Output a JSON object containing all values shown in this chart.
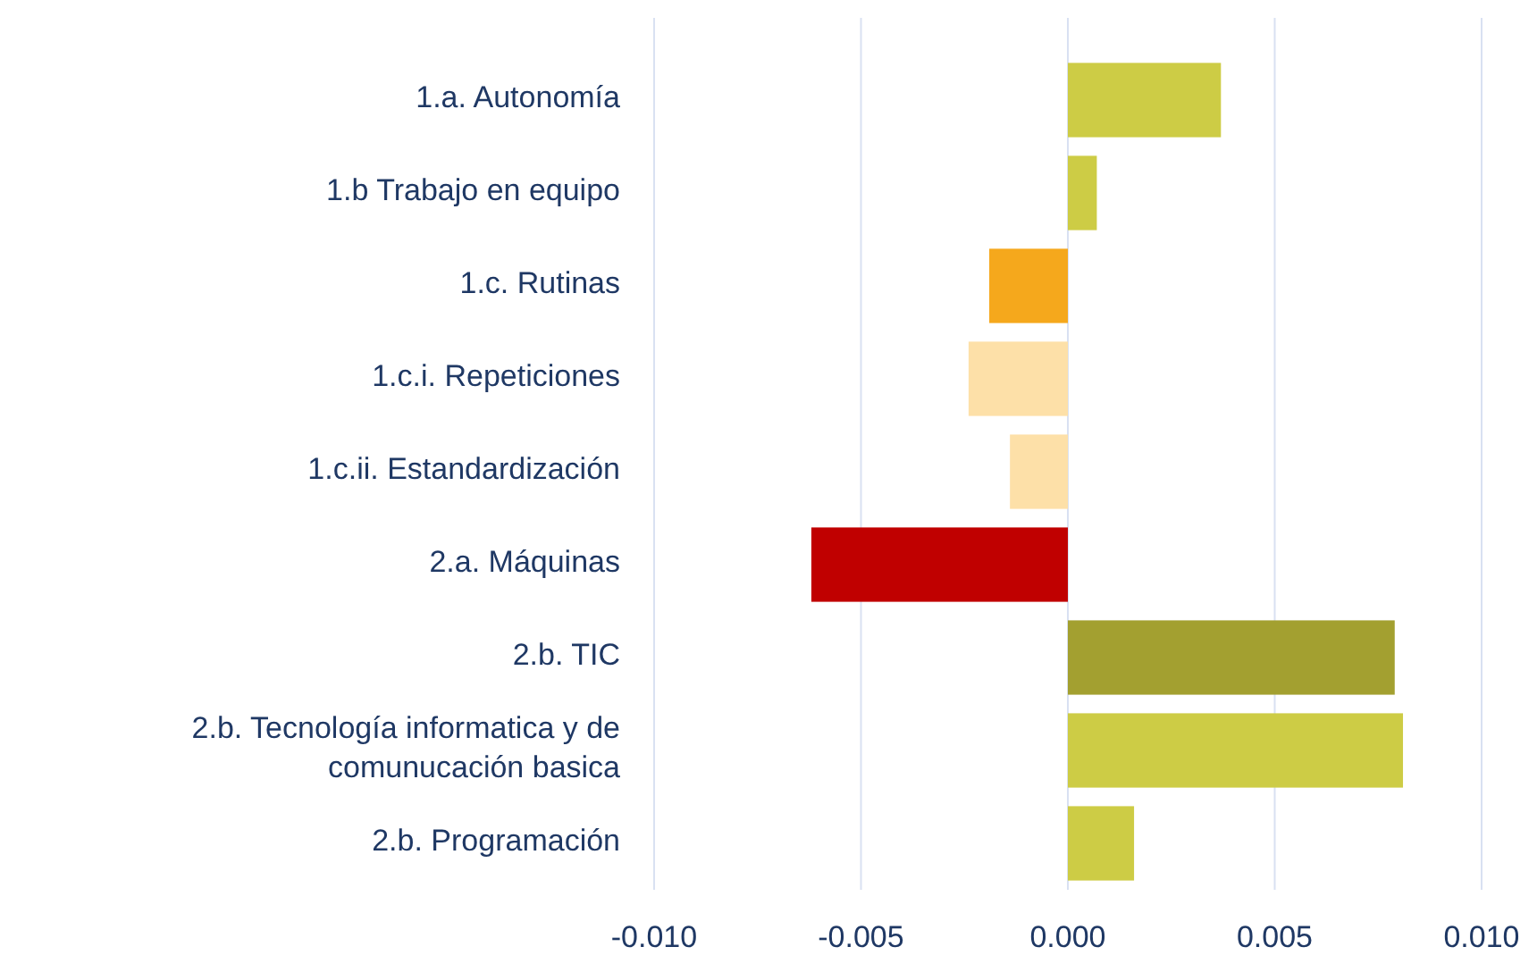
{
  "chart_data": {
    "type": "bar",
    "orientation": "horizontal",
    "categories": [
      "1.a. Autonomía",
      "1.b Trabajo en equipo",
      "1.c. Rutinas",
      "1.c.i. Repeticiones",
      "1.c.ii. Estandardización",
      "2.a. Máquinas",
      "2.b. TIC",
      "2.b. Tecnología informatica y de comunucación basica",
      "2.b. Programación"
    ],
    "values": [
      0.0037,
      0.0007,
      -0.0019,
      -0.0024,
      -0.0014,
      -0.0062,
      0.0079,
      0.0081,
      0.0016
    ],
    "colors": [
      "#cdcc45",
      "#cdcc45",
      "#f5a81c",
      "#fde0a8",
      "#fde0a8",
      "#c00000",
      "#a3a030",
      "#cdcc45",
      "#cdcc45"
    ],
    "xlim": [
      -0.01,
      0.01
    ],
    "xticks": [
      {
        "value": -0.01,
        "label": "-0.010"
      },
      {
        "value": -0.005,
        "label": "-0.005"
      },
      {
        "value": 0,
        "label": "0.000"
      },
      {
        "value": 0.005,
        "label": "0.005"
      },
      {
        "value": 0.01,
        "label": "0.010"
      }
    ],
    "grid": "x"
  }
}
